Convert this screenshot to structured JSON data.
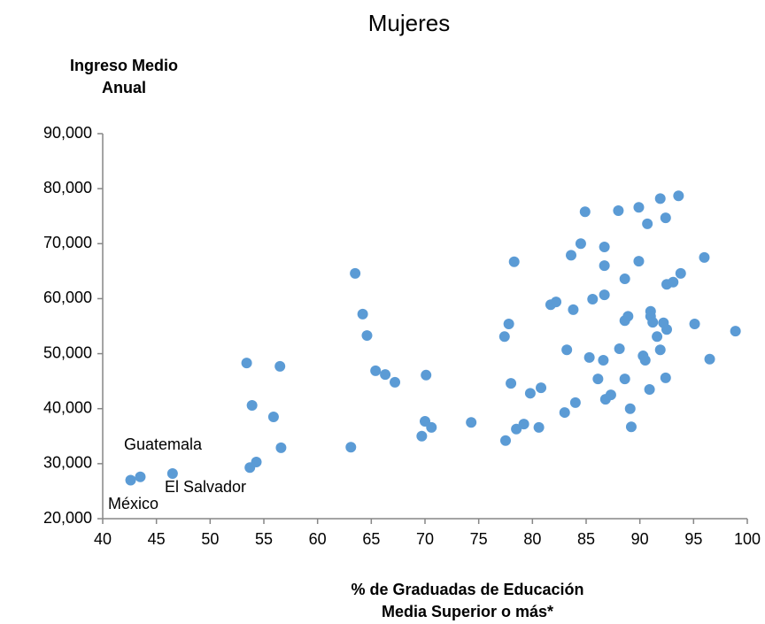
{
  "chart_data": {
    "type": "scatter",
    "title": "Mujeres",
    "ylabel": [
      "Ingreso Medio",
      "Anual"
    ],
    "xlabel": [
      "% de Graduadas de Educación",
      "Media Superior o más*"
    ],
    "color": "#5b9bd5",
    "xlim": [
      40,
      100
    ],
    "xticks": [
      40,
      45,
      50,
      55,
      60,
      65,
      70,
      75,
      80,
      85,
      90,
      95,
      100
    ],
    "ylim": [
      20000,
      90000
    ],
    "yticks": [
      {
        "value": 20000,
        "label": "20,000"
      },
      {
        "value": 30000,
        "label": "30,000"
      },
      {
        "value": 40000,
        "label": "40,000"
      },
      {
        "value": 50000,
        "label": "50,000"
      },
      {
        "value": 60000,
        "label": "60,000"
      },
      {
        "value": 70000,
        "label": "70,000"
      },
      {
        "value": 80000,
        "label": "80,000"
      },
      {
        "value": 90000,
        "label": "90,000"
      }
    ],
    "annotations": [
      "Guatemala",
      "El Salvador",
      "México"
    ],
    "x": [
      42.6,
      43.5,
      46.5,
      53.4,
      53.9,
      53.7,
      54.3,
      55.9,
      56.5,
      56.6,
      63.1,
      63.5,
      64.2,
      64.6,
      65.4,
      66.3,
      67.2,
      70.1,
      70.0,
      70.6,
      69.7,
      74.3,
      77.5,
      77.4,
      77.8,
      78.0,
      78.3,
      78.5,
      79.2,
      79.8,
      80.6,
      80.8,
      81.7,
      82.2,
      83.0,
      83.2,
      83.6,
      83.8,
      84.0,
      84.5,
      84.9,
      85.3,
      85.6,
      86.1,
      86.6,
      86.7,
      86.7,
      86.7,
      86.8,
      87.3,
      88.0,
      88.1,
      88.6,
      88.6,
      88.6,
      88.9,
      89.1,
      89.2,
      89.9,
      89.9,
      90.3,
      90.5,
      90.7,
      90.9,
      91.0,
      91.0,
      91.2,
      91.6,
      91.9,
      91.9,
      92.2,
      92.4,
      92.4,
      92.5,
      92.5,
      93.1,
      93.6,
      93.8,
      95.1,
      96.0,
      96.5,
      98.9
    ],
    "y": [
      27000,
      27600,
      28200,
      48300,
      40600,
      29300,
      30300,
      38500,
      47700,
      32900,
      33000,
      64600,
      57200,
      53300,
      46900,
      46200,
      44800,
      46100,
      37700,
      36600,
      35000,
      37500,
      34200,
      53100,
      55400,
      44600,
      66700,
      36300,
      37200,
      42800,
      36600,
      43800,
      58900,
      59400,
      39300,
      50700,
      67900,
      58000,
      41100,
      70000,
      75800,
      49300,
      59900,
      45400,
      48800,
      69400,
      66000,
      60700,
      41700,
      42500,
      76000,
      50900,
      63600,
      45400,
      56000,
      56800,
      40000,
      36700,
      76600,
      66800,
      49600,
      48800,
      73600,
      43500,
      57700,
      56800,
      55700,
      53100,
      78200,
      50700,
      55600,
      74700,
      45600,
      54400,
      62600,
      63000,
      78700,
      64600,
      55400,
      67500,
      49000,
      54100
    ]
  }
}
